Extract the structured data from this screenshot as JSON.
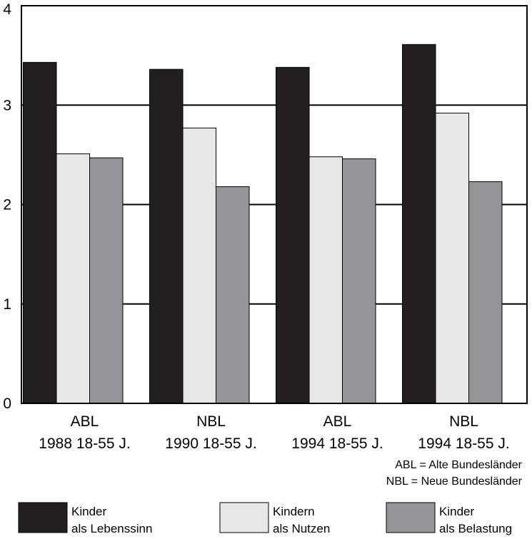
{
  "chart_data": {
    "type": "bar",
    "categories": [
      {
        "line1": "ABL",
        "line2": "1988 18-55 J."
      },
      {
        "line1": "NBL",
        "line2": "1990 18-55 J."
      },
      {
        "line1": "ABL",
        "line2": "1994 18-55 J."
      },
      {
        "line1": "NBL",
        "line2": "1994 18-55 J."
      }
    ],
    "series": [
      {
        "line1": "Kinder",
        "line2": "als Lebenssinn",
        "color": "#231f20",
        "values": [
          3.43,
          3.36,
          3.38,
          3.61
        ]
      },
      {
        "line1": "Kindern",
        "line2": "als Nutzen",
        "color": "#e6e7e8",
        "values": [
          2.51,
          2.77,
          2.48,
          2.92
        ]
      },
      {
        "line1": "Kinder",
        "line2": "als Belastung",
        "color": "#939598",
        "values": [
          2.47,
          2.18,
          2.46,
          2.23
        ]
      }
    ],
    "y_ticks": [
      "0",
      "1",
      "2",
      "3",
      "4"
    ],
    "ylim": [
      0,
      4
    ],
    "grid": true,
    "legend_position": "bottom",
    "notes": [
      "ABL = Alte Bundesländer",
      "NBL = Neue Bundesländer"
    ]
  }
}
